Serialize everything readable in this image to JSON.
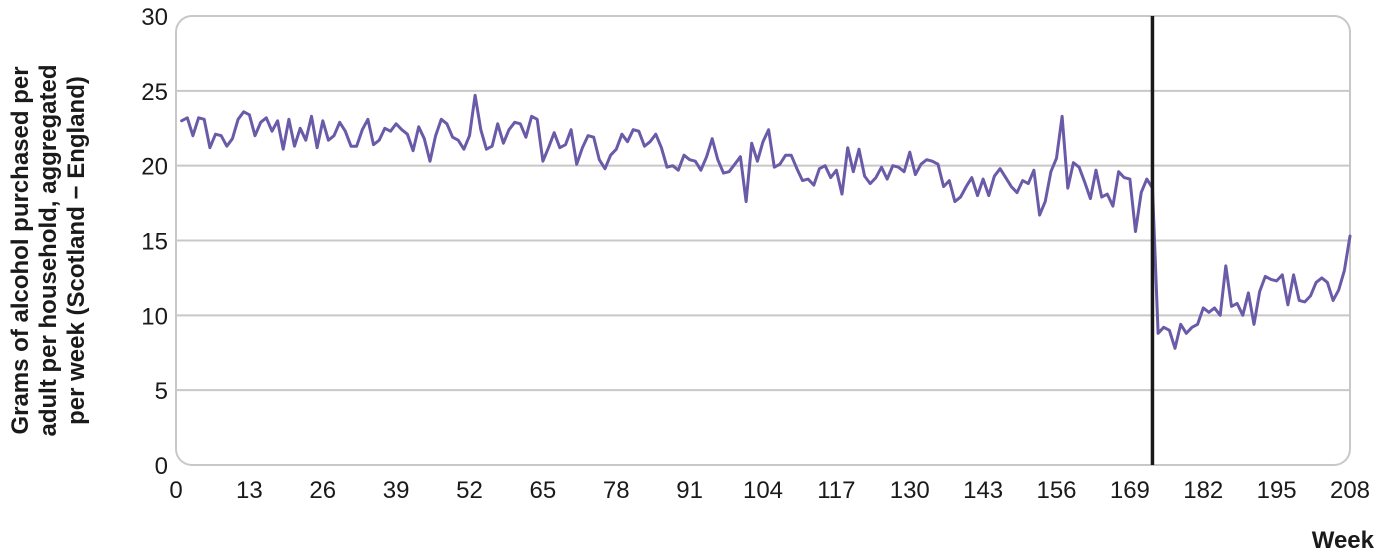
{
  "chart_data": {
    "type": "line",
    "title": "",
    "xlabel": "Week",
    "ylabel_lines": [
      "Grams of alcohol purchased per",
      "adult per household, aggregated",
      "per week (Scotland − England)"
    ],
    "xlim": [
      0,
      208
    ],
    "ylim": [
      0,
      30
    ],
    "xticks": [
      0,
      13,
      26,
      39,
      52,
      65,
      78,
      91,
      104,
      117,
      130,
      143,
      156,
      169,
      182,
      195,
      208
    ],
    "yticks": [
      0,
      5,
      10,
      15,
      20,
      25,
      30
    ],
    "grid": "horizontal",
    "legend": "none",
    "vertical_line_x": 173,
    "colors": {
      "series": "#6a5aa8",
      "vline": "#1a1a1a",
      "grid": "#c8c8c8",
      "frame": "#c8c8c8"
    },
    "series": [
      {
        "x": [
          1,
          2,
          3,
          4,
          5,
          6,
          7,
          8,
          9,
          10,
          11,
          12,
          13,
          14,
          15,
          16,
          17,
          18,
          19,
          20,
          21,
          22,
          23,
          24,
          25,
          26,
          27,
          28,
          29,
          30,
          31,
          32,
          33,
          34,
          35,
          36,
          37,
          38,
          39,
          40,
          41,
          42,
          43,
          44,
          45,
          46,
          47,
          48,
          49,
          50,
          51,
          52,
          53,
          54,
          55,
          56,
          57,
          58,
          59,
          60,
          61,
          62,
          63,
          64,
          65,
          66,
          67,
          68,
          69,
          70,
          71,
          72,
          73,
          74,
          75,
          76,
          77,
          78,
          79,
          80,
          81,
          82,
          83,
          84,
          85,
          86,
          87,
          88,
          89,
          90,
          91,
          92,
          93,
          94,
          95,
          96,
          97,
          98,
          99,
          100,
          101,
          102,
          103,
          104,
          105,
          106,
          107,
          108,
          109,
          110,
          111,
          112,
          113,
          114,
          115,
          116,
          117,
          118,
          119,
          120,
          121,
          122,
          123,
          124,
          125,
          126,
          127,
          128,
          129,
          130,
          131,
          132,
          133,
          134,
          135,
          136,
          137,
          138,
          139,
          140,
          141,
          142,
          143,
          144,
          145,
          146,
          147,
          148,
          149,
          150,
          151,
          152,
          153,
          154,
          155,
          156,
          157,
          158,
          159,
          160,
          161,
          162,
          163,
          164,
          165,
          166,
          167,
          168,
          169,
          170,
          171,
          172,
          173,
          174,
          175,
          176,
          177,
          178,
          179,
          180,
          181,
          182,
          183,
          184,
          185,
          186,
          187,
          188,
          189,
          190,
          191,
          192,
          193,
          194,
          195,
          196,
          197,
          198,
          199,
          200,
          201,
          202,
          203,
          204,
          205,
          206,
          207,
          208
        ],
        "values": [
          23.0,
          23.2,
          22.0,
          23.2,
          23.1,
          21.2,
          22.1,
          22.0,
          21.3,
          21.8,
          23.1,
          23.6,
          23.4,
          22.0,
          22.9,
          23.2,
          22.3,
          23.0,
          21.1,
          23.1,
          21.3,
          22.5,
          21.7,
          23.3,
          21.2,
          23.0,
          21.7,
          22.0,
          22.9,
          22.3,
          21.3,
          21.3,
          22.4,
          23.1,
          21.4,
          21.7,
          22.5,
          22.3,
          22.8,
          22.4,
          22.1,
          21.0,
          22.6,
          21.8,
          20.3,
          22.0,
          23.1,
          22.8,
          21.9,
          21.7,
          21.1,
          22.0,
          24.7,
          22.4,
          21.1,
          21.3,
          22.8,
          21.5,
          22.4,
          22.9,
          22.8,
          21.9,
          23.3,
          23.1,
          20.3,
          21.2,
          22.2,
          21.2,
          21.4,
          22.4,
          20.1,
          21.2,
          22.0,
          21.9,
          20.4,
          19.8,
          20.7,
          21.1,
          22.1,
          21.6,
          22.4,
          22.3,
          21.3,
          21.6,
          22.1,
          21.2,
          19.9,
          20.0,
          19.7,
          20.7,
          20.4,
          20.3,
          19.7,
          20.6,
          21.8,
          20.4,
          19.5,
          19.6,
          20.1,
          20.6,
          17.6,
          21.5,
          20.3,
          21.6,
          22.4,
          19.9,
          20.1,
          20.7,
          20.7,
          19.8,
          19.0,
          19.1,
          18.7,
          19.8,
          20.0,
          19.2,
          19.7,
          18.1,
          21.2,
          19.6,
          21.1,
          19.3,
          18.8,
          19.2,
          19.9,
          19.1,
          20.0,
          19.9,
          19.6,
          20.9,
          19.4,
          20.1,
          20.4,
          20.3,
          20.1,
          18.6,
          19.0,
          17.6,
          17.9,
          18.6,
          19.2,
          18.0,
          19.1,
          18.0,
          19.3,
          19.8,
          19.2,
          18.6,
          18.2,
          19.0,
          18.8,
          19.7,
          16.7,
          17.6,
          19.6,
          20.5,
          23.3,
          18.5,
          20.2,
          19.9,
          18.9,
          17.8,
          19.7,
          17.9,
          18.1,
          17.3,
          19.6,
          19.2,
          19.1,
          15.6,
          18.2,
          19.1,
          18.5,
          8.8,
          9.2,
          9.0,
          7.8,
          9.4,
          8.8,
          9.2,
          9.4,
          10.5,
          10.2,
          10.5,
          10.0,
          13.3,
          10.6,
          10.8,
          10.0,
          11.5,
          9.4,
          11.6,
          12.6,
          12.4,
          12.3,
          12.7,
          10.7,
          12.7,
          11.0,
          10.9,
          11.3,
          12.2,
          12.5,
          12.2,
          11.0,
          11.7,
          13.0,
          15.3
        ]
      }
    ]
  }
}
